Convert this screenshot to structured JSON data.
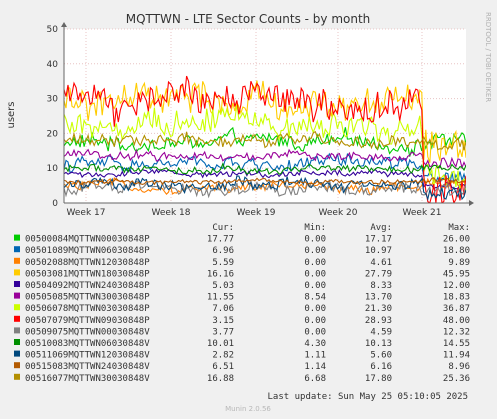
{
  "chart_data": {
    "type": "line",
    "title": "MQTTWN - LTE Sector Counts - by month",
    "ylabel": "users",
    "xlabel": "",
    "ylim": [
      0,
      50
    ],
    "y_ticks": [
      "0",
      "10",
      "20",
      "30",
      "40",
      "50"
    ],
    "x_ticks": [
      "Week 17",
      "Week 18",
      "Week 19",
      "Week 20",
      "Week 21"
    ],
    "grid": true,
    "side_label": "RRDTOOL / TOBI OETIKER",
    "column_headers": [
      "Cur:",
      "Min:",
      "Avg:",
      "Max:"
    ],
    "series": [
      {
        "name": "00500084MQTTWN00030848P",
        "color": "#00cc00",
        "cur": "17.77",
        "min": "0.00",
        "avg": "17.17",
        "max": "26.00"
      },
      {
        "name": "00501089MQTTWN06030848P",
        "color": "#0066b3",
        "cur": "6.96",
        "min": "0.00",
        "avg": "10.97",
        "max": "18.80"
      },
      {
        "name": "00502088MQTTWN12030848P",
        "color": "#ff8000",
        "cur": "5.59",
        "min": "0.00",
        "avg": "4.61",
        "max": "9.89"
      },
      {
        "name": "00503081MQTTWN18030848P",
        "color": "#ffcc00",
        "cur": "16.16",
        "min": "0.00",
        "avg": "27.79",
        "max": "45.95"
      },
      {
        "name": "00504092MQTTWN24030848P",
        "color": "#330099",
        "cur": "5.03",
        "min": "0.00",
        "avg": "8.33",
        "max": "12.00"
      },
      {
        "name": "00505085MQTTWN30030848P",
        "color": "#990099",
        "cur": "11.55",
        "min": "8.54",
        "avg": "13.70",
        "max": "18.83"
      },
      {
        "name": "00506078MQTTWN03030848P",
        "color": "#ccff00",
        "cur": "7.06",
        "min": "0.00",
        "avg": "21.30",
        "max": "36.87"
      },
      {
        "name": "00507079MQTTWN09030848P",
        "color": "#ff0000",
        "cur": "3.15",
        "min": "0.00",
        "avg": "28.93",
        "max": "48.00"
      },
      {
        "name": "00509075MQTTWN00030848V",
        "color": "#808080",
        "cur": "3.77",
        "min": "0.00",
        "avg": "4.59",
        "max": "12.32"
      },
      {
        "name": "00510083MQTTWN06030848V",
        "color": "#008f00",
        "cur": "10.01",
        "min": "4.30",
        "avg": "10.13",
        "max": "14.55"
      },
      {
        "name": "00511069MQTTWN12030848V",
        "color": "#00487d",
        "cur": "2.82",
        "min": "1.11",
        "avg": "5.60",
        "max": "11.94"
      },
      {
        "name": "00515083MQTTWN24030848V",
        "color": "#b35a00",
        "cur": "6.51",
        "min": "1.14",
        "avg": "6.16",
        "max": "8.96"
      },
      {
        "name": "00516077MQTTWN30030848V",
        "color": "#b38f00",
        "cur": "16.88",
        "min": "6.68",
        "avg": "17.80",
        "max": "25.36"
      }
    ],
    "last_update": "Last update: Sun May 25 05:10:05 2025",
    "footer": "Munin 2.0.56"
  }
}
